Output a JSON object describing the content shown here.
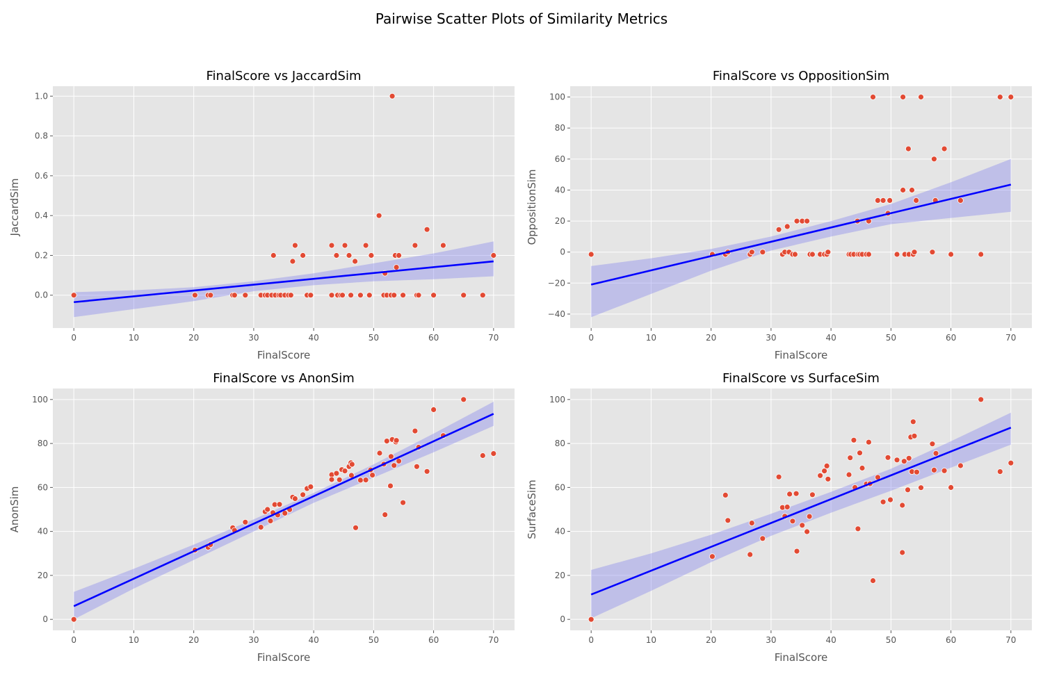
{
  "figure": {
    "title": "Pairwise Scatter Plots of Similarity Metrics"
  },
  "colors": {
    "points": "#E24A33",
    "regression": "#0000FF",
    "band": "#8888EE",
    "panel_bg": "#E5E5E5",
    "grid": "#FFFFFF"
  },
  "chart_data": [
    {
      "type": "scatter",
      "title": "FinalScore vs JaccardSim",
      "xlabel": "FinalScore",
      "ylabel": "JaccardSim",
      "xlim": [
        -3.5,
        73.5
      ],
      "ylim": [
        -0.165,
        1.05
      ],
      "xticks": [
        "0",
        "10",
        "20",
        "30",
        "40",
        "50",
        "60",
        "70"
      ],
      "xtick_values": [
        0,
        10,
        20,
        30,
        40,
        50,
        60,
        70
      ],
      "yticks": [
        "0.0",
        "0.2",
        "0.4",
        "0.6",
        "0.8",
        "1.0"
      ],
      "ytick_values": [
        0,
        0.2,
        0.4,
        0.6,
        0.8,
        1.0
      ],
      "regression": {
        "x": [
          0,
          70
        ],
        "y": [
          -0.035,
          0.17
        ]
      },
      "band": {
        "x": [
          0,
          10,
          20,
          30,
          40,
          50,
          60,
          70
        ],
        "lower": [
          -0.11,
          -0.07,
          -0.03,
          0.02,
          0.05,
          0.07,
          0.08,
          0.095
        ],
        "upper": [
          0.015,
          0.025,
          0.04,
          0.07,
          0.11,
          0.16,
          0.21,
          0.27
        ]
      },
      "points": [
        [
          0,
          0
        ],
        [
          20.2,
          0
        ],
        [
          22.4,
          0
        ],
        [
          22.8,
          0
        ],
        [
          26.5,
          0
        ],
        [
          26.8,
          0
        ],
        [
          28.6,
          0
        ],
        [
          31.2,
          0
        ],
        [
          31.9,
          0
        ],
        [
          32.3,
          0
        ],
        [
          33.0,
          0
        ],
        [
          33.3,
          0.2
        ],
        [
          33.6,
          0
        ],
        [
          34.2,
          0
        ],
        [
          34.5,
          0
        ],
        [
          35.2,
          0
        ],
        [
          35.8,
          0
        ],
        [
          36.2,
          0
        ],
        [
          36.5,
          0.17
        ],
        [
          36.9,
          0.25
        ],
        [
          38.2,
          0.2
        ],
        [
          38.9,
          0
        ],
        [
          39.5,
          0
        ],
        [
          43.0,
          0.25
        ],
        [
          43.0,
          0
        ],
        [
          43.8,
          0.2
        ],
        [
          44.0,
          0
        ],
        [
          44.5,
          0
        ],
        [
          44.8,
          0
        ],
        [
          45.2,
          0.25
        ],
        [
          45.9,
          0.2
        ],
        [
          46.2,
          0
        ],
        [
          46.9,
          0.17
        ],
        [
          47.8,
          0
        ],
        [
          48.7,
          0.25
        ],
        [
          49.6,
          0.2
        ],
        [
          49.3,
          0
        ],
        [
          50.9,
          0.4
        ],
        [
          51.7,
          0
        ],
        [
          51.9,
          0.11
        ],
        [
          52.2,
          0
        ],
        [
          52.9,
          0
        ],
        [
          53.1,
          1.0
        ],
        [
          53.4,
          0
        ],
        [
          53.6,
          0.2
        ],
        [
          53.8,
          0.14
        ],
        [
          54.2,
          0.2
        ],
        [
          54.9,
          0
        ],
        [
          56.9,
          0.25
        ],
        [
          57.2,
          0
        ],
        [
          57.5,
          0
        ],
        [
          58.9,
          0.33
        ],
        [
          60.0,
          0
        ],
        [
          61.6,
          0.25
        ],
        [
          65.0,
          0
        ],
        [
          68.2,
          0
        ],
        [
          70.0,
          0.2
        ]
      ]
    },
    {
      "type": "scatter",
      "title": "FinalScore vs OppositionSim",
      "xlabel": "FinalScore",
      "ylabel": "OppositionSim",
      "xlim": [
        -3.5,
        73.5
      ],
      "ylim": [
        -49,
        107
      ],
      "xticks": [
        "0",
        "10",
        "20",
        "30",
        "40",
        "50",
        "60",
        "70"
      ],
      "xtick_values": [
        0,
        10,
        20,
        30,
        40,
        50,
        60,
        70
      ],
      "yticks": [
        "−40",
        "−20",
        "0",
        "20",
        "40",
        "60",
        "80",
        "100"
      ],
      "ytick_values": [
        -40,
        -20,
        0,
        20,
        40,
        60,
        80,
        100
      ],
      "regression": {
        "x": [
          0,
          70
        ],
        "y": [
          -21,
          43.5
        ]
      },
      "band": {
        "x": [
          0,
          10,
          20,
          30,
          40,
          50,
          60,
          70
        ],
        "lower": [
          -42,
          -27,
          -12,
          1,
          10,
          18,
          22,
          26
        ],
        "upper": [
          -9,
          -4,
          2,
          10,
          20,
          31,
          45,
          60
        ]
      },
      "points": [
        [
          0,
          -1.5
        ],
        [
          20.2,
          -1.5
        ],
        [
          22.4,
          -1.5
        ],
        [
          22.8,
          0
        ],
        [
          26.5,
          -1.5
        ],
        [
          26.8,
          0
        ],
        [
          28.6,
          0
        ],
        [
          31.3,
          14.5
        ],
        [
          31.9,
          -1.5
        ],
        [
          32.3,
          0
        ],
        [
          32.7,
          16.5
        ],
        [
          33.0,
          0
        ],
        [
          33.6,
          -1.5
        ],
        [
          34.0,
          -1.5
        ],
        [
          34.3,
          20
        ],
        [
          35.2,
          20
        ],
        [
          36.0,
          20
        ],
        [
          36.5,
          -1.5
        ],
        [
          36.9,
          -1.5
        ],
        [
          38.2,
          -1.5
        ],
        [
          38.9,
          -1.5
        ],
        [
          39.3,
          -1.5
        ],
        [
          39.5,
          0
        ],
        [
          43.0,
          -1.5
        ],
        [
          43.3,
          -1.5
        ],
        [
          43.8,
          -1.5
        ],
        [
          44.5,
          -1.5
        ],
        [
          44.4,
          20
        ],
        [
          44.8,
          -1.5
        ],
        [
          45.2,
          -1.5
        ],
        [
          45.9,
          -1.5
        ],
        [
          46.3,
          20
        ],
        [
          46.3,
          -1.5
        ],
        [
          47.0,
          100
        ],
        [
          47.8,
          33.3
        ],
        [
          48.7,
          33.3
        ],
        [
          49.5,
          25
        ],
        [
          49.8,
          33.3
        ],
        [
          51.0,
          -1.5
        ],
        [
          52.0,
          40
        ],
        [
          52.0,
          100
        ],
        [
          52.3,
          -1.5
        ],
        [
          52.9,
          66.6
        ],
        [
          53.0,
          -1.5
        ],
        [
          53.5,
          40
        ],
        [
          53.7,
          -1.5
        ],
        [
          53.9,
          0
        ],
        [
          54.2,
          33.3
        ],
        [
          55.0,
          100
        ],
        [
          56.9,
          0
        ],
        [
          57.2,
          60
        ],
        [
          57.4,
          33.3
        ],
        [
          58.9,
          66.6
        ],
        [
          60.0,
          -1.5
        ],
        [
          61.6,
          33.3
        ],
        [
          65.0,
          -1.5
        ],
        [
          68.2,
          100
        ],
        [
          70.0,
          100
        ]
      ]
    },
    {
      "type": "scatter",
      "title": "FinalScore vs AnonSim",
      "xlabel": "FinalScore",
      "ylabel": "AnonSim",
      "xlim": [
        -3.5,
        73.5
      ],
      "ylim": [
        -5,
        105
      ],
      "xticks": [
        "0",
        "10",
        "20",
        "30",
        "40",
        "50",
        "60",
        "70"
      ],
      "xtick_values": [
        0,
        10,
        20,
        30,
        40,
        50,
        60,
        70
      ],
      "yticks": [
        "0",
        "20",
        "40",
        "60",
        "80",
        "100"
      ],
      "ytick_values": [
        0,
        20,
        40,
        60,
        80,
        100
      ],
      "regression": {
        "x": [
          0,
          70
        ],
        "y": [
          6,
          93.5
        ]
      },
      "band": {
        "x": [
          0,
          10,
          20,
          30,
          40,
          50,
          60,
          70
        ],
        "lower": [
          0,
          14,
          27,
          40,
          53,
          64.5,
          76,
          88
        ],
        "upper": [
          12.5,
          23,
          34,
          45.5,
          57.5,
          70.5,
          84.5,
          99
        ]
      },
      "points": [
        [
          0,
          0
        ],
        [
          20.2,
          31.5
        ],
        [
          22.4,
          32.8
        ],
        [
          22.8,
          34
        ],
        [
          26.5,
          41.7
        ],
        [
          26.8,
          40.5
        ],
        [
          28.6,
          44.2
        ],
        [
          31.2,
          41.9
        ],
        [
          31.9,
          49
        ],
        [
          32.3,
          50
        ],
        [
          32.8,
          44.8
        ],
        [
          33.2,
          48.5
        ],
        [
          33.5,
          52.2
        ],
        [
          34.0,
          47.5
        ],
        [
          34.3,
          52.3
        ],
        [
          35.2,
          48.3
        ],
        [
          36.0,
          49.9
        ],
        [
          36.5,
          55.6
        ],
        [
          36.9,
          54.9
        ],
        [
          38.2,
          56.7
        ],
        [
          38.9,
          59.5
        ],
        [
          39.5,
          60.3
        ],
        [
          43.0,
          65.8
        ],
        [
          43.0,
          63.6
        ],
        [
          43.8,
          66.4
        ],
        [
          44.3,
          63.5
        ],
        [
          44.7,
          68.1
        ],
        [
          45.2,
          67.5
        ],
        [
          45.9,
          69.5
        ],
        [
          46.2,
          71.2
        ],
        [
          46.4,
          70.5
        ],
        [
          46.3,
          65.5
        ],
        [
          47.0,
          41.7
        ],
        [
          47.8,
          63.3
        ],
        [
          48.7,
          63.4
        ],
        [
          49.5,
          68.0
        ],
        [
          49.8,
          65.6
        ],
        [
          51.0,
          75.6
        ],
        [
          51.7,
          70.6
        ],
        [
          51.9,
          47.6
        ],
        [
          52.2,
          81.1
        ],
        [
          52.8,
          60.7
        ],
        [
          52.9,
          74.1
        ],
        [
          53.1,
          81.8
        ],
        [
          53.4,
          70.0
        ],
        [
          53.7,
          80.7
        ],
        [
          53.8,
          81.4
        ],
        [
          54.2,
          72.0
        ],
        [
          54.9,
          53.1
        ],
        [
          56.9,
          85.7
        ],
        [
          57.2,
          69.5
        ],
        [
          57.5,
          78.3
        ],
        [
          58.9,
          67.3
        ],
        [
          60.0,
          95.4
        ],
        [
          61.6,
          83.6
        ],
        [
          65.0,
          100
        ],
        [
          68.2,
          74.5
        ],
        [
          70.0,
          75.4
        ]
      ]
    },
    {
      "type": "scatter",
      "title": "FinalScore vs SurfaceSim",
      "xlabel": "FinalScore",
      "ylabel": "SurfaceSim",
      "xlim": [
        -3.5,
        73.5
      ],
      "ylim": [
        -5,
        105
      ],
      "xticks": [
        "0",
        "10",
        "20",
        "30",
        "40",
        "50",
        "60",
        "70"
      ],
      "xtick_values": [
        0,
        10,
        20,
        30,
        40,
        50,
        60,
        70
      ],
      "yticks": [
        "0",
        "20",
        "40",
        "60",
        "80",
        "100"
      ],
      "ytick_values": [
        0,
        20,
        40,
        60,
        80,
        100
      ],
      "regression": {
        "x": [
          0,
          70
        ],
        "y": [
          11.3,
          87.2
        ]
      },
      "band": {
        "x": [
          0,
          10,
          20,
          30,
          40,
          50,
          60,
          70
        ],
        "lower": [
          0.5,
          13,
          26,
          38,
          48.5,
          58.5,
          69,
          79.5
        ],
        "upper": [
          22.5,
          30,
          38.5,
          48,
          58,
          68.5,
          81,
          94
        ]
      },
      "points": [
        [
          0,
          0
        ],
        [
          20.2,
          28.6
        ],
        [
          22.4,
          56.5
        ],
        [
          22.8,
          45
        ],
        [
          26.5,
          29.5
        ],
        [
          26.8,
          43.8
        ],
        [
          28.6,
          36.8
        ],
        [
          31.3,
          64.8
        ],
        [
          31.9,
          50.9
        ],
        [
          32.3,
          46.9
        ],
        [
          32.7,
          51.1
        ],
        [
          33.1,
          57
        ],
        [
          33.6,
          44.7
        ],
        [
          34.2,
          57.2
        ],
        [
          34.3,
          31
        ],
        [
          35.2,
          42.8
        ],
        [
          36.0,
          39.9
        ],
        [
          36.4,
          46.8
        ],
        [
          36.9,
          56.7
        ],
        [
          38.2,
          65.4
        ],
        [
          38.9,
          67.5
        ],
        [
          39.3,
          69.8
        ],
        [
          39.5,
          63.8
        ],
        [
          43.0,
          65.8
        ],
        [
          43.2,
          73.5
        ],
        [
          43.8,
          81.5
        ],
        [
          44.0,
          60.0
        ],
        [
          44.5,
          41.2
        ],
        [
          44.8,
          75.7
        ],
        [
          45.2,
          68.8
        ],
        [
          45.9,
          61.6
        ],
        [
          46.3,
          80.6
        ],
        [
          46.5,
          61.7
        ],
        [
          47.0,
          17.6
        ],
        [
          47.8,
          64.6
        ],
        [
          48.7,
          53.4
        ],
        [
          49.5,
          73.6
        ],
        [
          49.9,
          54.4
        ],
        [
          51.0,
          72.5
        ],
        [
          51.9,
          51.9
        ],
        [
          51.9,
          30.4
        ],
        [
          52.2,
          71.9
        ],
        [
          52.8,
          58.9
        ],
        [
          53.0,
          73.3
        ],
        [
          53.3,
          82.9
        ],
        [
          53.5,
          67.2
        ],
        [
          53.7,
          89.9
        ],
        [
          53.9,
          83.4
        ],
        [
          54.3,
          67.0
        ],
        [
          55.0,
          59.9
        ],
        [
          56.9,
          79.8
        ],
        [
          57.2,
          67.9
        ],
        [
          57.5,
          75.5
        ],
        [
          58.9,
          67.6
        ],
        [
          60.0,
          60
        ],
        [
          61.6,
          69.9
        ],
        [
          65.0,
          100
        ],
        [
          68.2,
          67.2
        ],
        [
          70.0,
          71.1
        ]
      ]
    }
  ]
}
